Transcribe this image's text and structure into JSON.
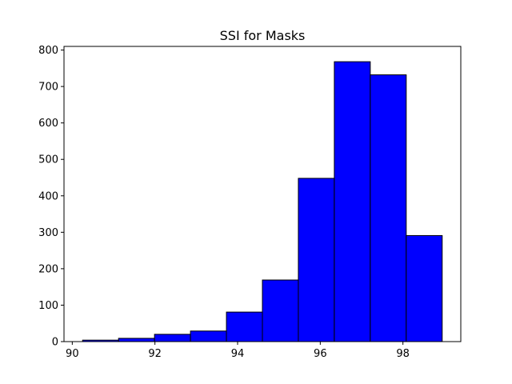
{
  "chart_data": {
    "type": "bar",
    "title": "SSI for Masks",
    "xlabel": "",
    "ylabel": "",
    "bin_edges": [
      90.25,
      91.12,
      91.99,
      92.86,
      93.73,
      94.6,
      95.47,
      96.34,
      97.21,
      98.08,
      98.95
    ],
    "values": [
      4,
      9,
      20,
      29,
      81,
      169,
      448,
      768,
      732,
      291
    ],
    "xlim": [
      89.8,
      99.4
    ],
    "ylim": [
      0,
      810
    ],
    "xticks": [
      90,
      92,
      94,
      96,
      98
    ],
    "yticks": [
      0,
      100,
      200,
      300,
      400,
      500,
      600,
      700,
      800
    ],
    "bar_color": "#0000ff",
    "edge_color": "#000000",
    "grid": false,
    "legend": "none"
  }
}
